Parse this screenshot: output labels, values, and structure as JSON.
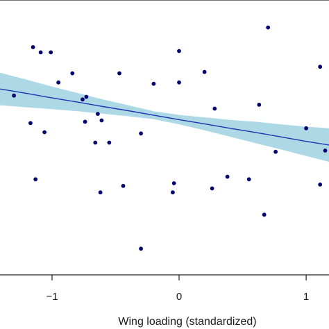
{
  "chart_data": {
    "type": "scatter",
    "xlabel": "Wing loading (standardized)",
    "x_ticks": [
      -1,
      0,
      1
    ],
    "x_tick_labels": [
      "−1",
      "0",
      "1"
    ],
    "xlim": [
      -1.41,
      1.18
    ],
    "ylim": [
      -0.03,
      1.02
    ],
    "grid": false,
    "colors": {
      "points": "#00006e",
      "fit_line": "#1a35b0",
      "ci_band": "#add8e6",
      "axis": "#222222"
    },
    "points": [
      {
        "x": -1.3,
        "y": 0.655
      },
      {
        "x": -1.15,
        "y": 0.84
      },
      {
        "x": -1.09,
        "y": 0.82
      },
      {
        "x": -1.01,
        "y": 0.82
      },
      {
        "x": -0.95,
        "y": 0.705
      },
      {
        "x": -0.84,
        "y": 0.74
      },
      {
        "x": -0.76,
        "y": 0.64
      },
      {
        "x": -0.73,
        "y": 0.65
      },
      {
        "x": -0.74,
        "y": 0.555
      },
      {
        "x": -0.64,
        "y": 0.585
      },
      {
        "x": -0.61,
        "y": 0.56
      },
      {
        "x": -1.17,
        "y": 0.55
      },
      {
        "x": -1.06,
        "y": 0.515
      },
      {
        "x": -0.66,
        "y": 0.475
      },
      {
        "x": -0.55,
        "y": 0.475
      },
      {
        "x": -1.13,
        "y": 0.335
      },
      {
        "x": -0.62,
        "y": 0.285
      },
      {
        "x": -0.44,
        "y": 0.31
      },
      {
        "x": -0.47,
        "y": 0.74
      },
      {
        "x": -0.3,
        "y": 0.51
      },
      {
        "x": -0.2,
        "y": 0.7
      },
      {
        "x": -0.3,
        "y": 0.07
      },
      {
        "x": 0.0,
        "y": 0.825
      },
      {
        "x": 0.0,
        "y": 0.705
      },
      {
        "x": 0.2,
        "y": 0.745
      },
      {
        "x": 0.28,
        "y": 0.605
      },
      {
        "x": -0.04,
        "y": 0.32
      },
      {
        "x": -0.05,
        "y": 0.285
      },
      {
        "x": 0.26,
        "y": 0.3
      },
      {
        "x": 0.38,
        "y": 0.345
      },
      {
        "x": 0.55,
        "y": 0.335
      },
      {
        "x": 0.63,
        "y": 0.62
      },
      {
        "x": 0.7,
        "y": 0.915
      },
      {
        "x": 0.67,
        "y": 0.2
      },
      {
        "x": 0.76,
        "y": 0.44
      },
      {
        "x": 1.0,
        "y": 0.53
      },
      {
        "x": 1.11,
        "y": 0.765
      },
      {
        "x": 1.15,
        "y": 0.445
      },
      {
        "x": 1.11,
        "y": 0.315
      }
    ],
    "fit": {
      "x": [
        -1.41,
        -1.2,
        -1.0,
        -0.8,
        -0.6,
        -0.4,
        -0.2,
        0.0,
        0.2,
        0.4,
        0.6,
        0.8,
        1.0,
        1.18
      ],
      "y": [
        0.68,
        0.663,
        0.646,
        0.63,
        0.613,
        0.597,
        0.58,
        0.563,
        0.547,
        0.53,
        0.514,
        0.497,
        0.48,
        0.466
      ],
      "lower": [
        0.618,
        0.61,
        0.603,
        0.595,
        0.586,
        0.576,
        0.565,
        0.545,
        0.522,
        0.498,
        0.473,
        0.449,
        0.424,
        0.402
      ],
      "upper": [
        0.742,
        0.716,
        0.689,
        0.665,
        0.64,
        0.618,
        0.595,
        0.581,
        0.572,
        0.562,
        0.555,
        0.545,
        0.536,
        0.53
      ]
    }
  }
}
